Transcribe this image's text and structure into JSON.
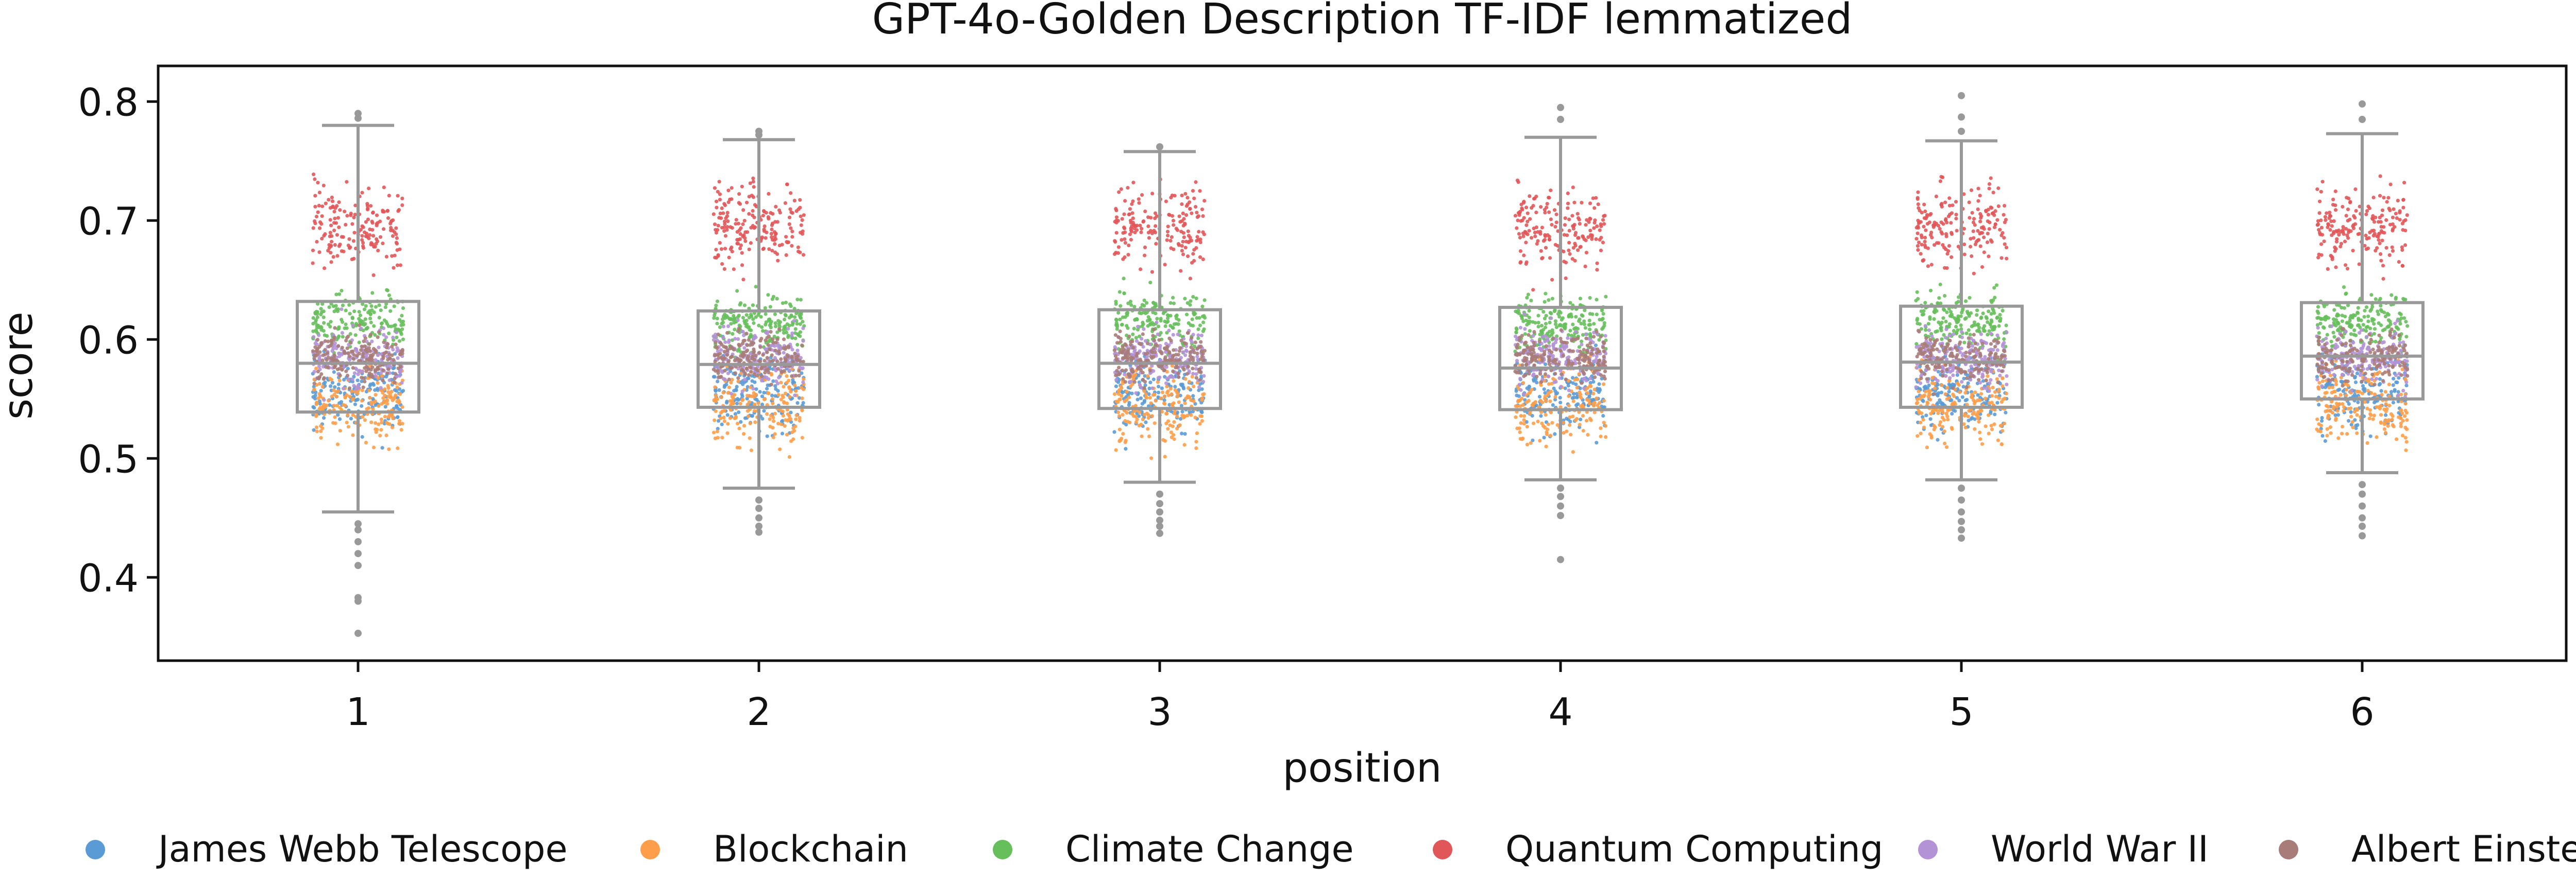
{
  "chart_data": {
    "type": "box-strip",
    "title": "GPT-4o-Golden Description TF-IDF lemmatized",
    "xlabel": "position",
    "ylabel": "score",
    "categories": [
      "1",
      "2",
      "3",
      "4",
      "5",
      "6"
    ],
    "ylim": [
      0.33,
      0.83
    ],
    "yticks": [
      0.4,
      0.5,
      0.6,
      0.7,
      0.8
    ],
    "ytick_labels": [
      "0.4",
      "0.5",
      "0.6",
      "0.7",
      "0.8"
    ],
    "grid": false,
    "legend_position": "bottom",
    "box_color": "#999999",
    "boxes": [
      {
        "category": "1",
        "whisker_low": 0.455,
        "q1": 0.539,
        "median": 0.58,
        "q3": 0.632,
        "whisker_high": 0.78,
        "outliers": [
          0.445,
          0.44,
          0.43,
          0.42,
          0.41,
          0.383,
          0.38,
          0.353,
          0.786,
          0.79
        ]
      },
      {
        "category": "2",
        "whisker_low": 0.475,
        "q1": 0.543,
        "median": 0.579,
        "q3": 0.624,
        "whisker_high": 0.768,
        "outliers": [
          0.465,
          0.458,
          0.45,
          0.443,
          0.438,
          0.772,
          0.775
        ]
      },
      {
        "category": "3",
        "whisker_low": 0.48,
        "q1": 0.542,
        "median": 0.58,
        "q3": 0.625,
        "whisker_high": 0.758,
        "outliers": [
          0.47,
          0.462,
          0.455,
          0.448,
          0.443,
          0.437,
          0.762
        ]
      },
      {
        "category": "4",
        "whisker_low": 0.482,
        "q1": 0.541,
        "median": 0.576,
        "q3": 0.627,
        "whisker_high": 0.77,
        "outliers": [
          0.475,
          0.468,
          0.46,
          0.452,
          0.415,
          0.785,
          0.795
        ]
      },
      {
        "category": "5",
        "whisker_low": 0.482,
        "q1": 0.543,
        "median": 0.581,
        "q3": 0.628,
        "whisker_high": 0.767,
        "outliers": [
          0.475,
          0.465,
          0.455,
          0.447,
          0.44,
          0.433,
          0.775,
          0.787,
          0.805
        ]
      },
      {
        "category": "6",
        "whisker_low": 0.488,
        "q1": 0.55,
        "median": 0.586,
        "q3": 0.631,
        "whisker_high": 0.773,
        "outliers": [
          0.478,
          0.47,
          0.46,
          0.45,
          0.443,
          0.435,
          0.785,
          0.798
        ]
      }
    ],
    "series": [
      {
        "name": "James Webb Telescope",
        "color": "#5b9bd5",
        "value_range": [
          0.47,
          0.64
        ]
      },
      {
        "name": "Blockchain",
        "color": "#ff9e4a",
        "value_range": [
          0.45,
          0.64
        ]
      },
      {
        "name": "Climate Change",
        "color": "#67bf5c",
        "value_range": [
          0.55,
          0.68
        ]
      },
      {
        "name": "Quantum Computing",
        "color": "#e15759",
        "value_range": [
          0.6,
          0.79
        ]
      },
      {
        "name": "World War II",
        "color": "#b392d6",
        "value_range": [
          0.52,
          0.65
        ]
      },
      {
        "name": "Albert Einstein",
        "color": "#a87c78",
        "value_range": [
          0.53,
          0.64
        ]
      }
    ]
  }
}
